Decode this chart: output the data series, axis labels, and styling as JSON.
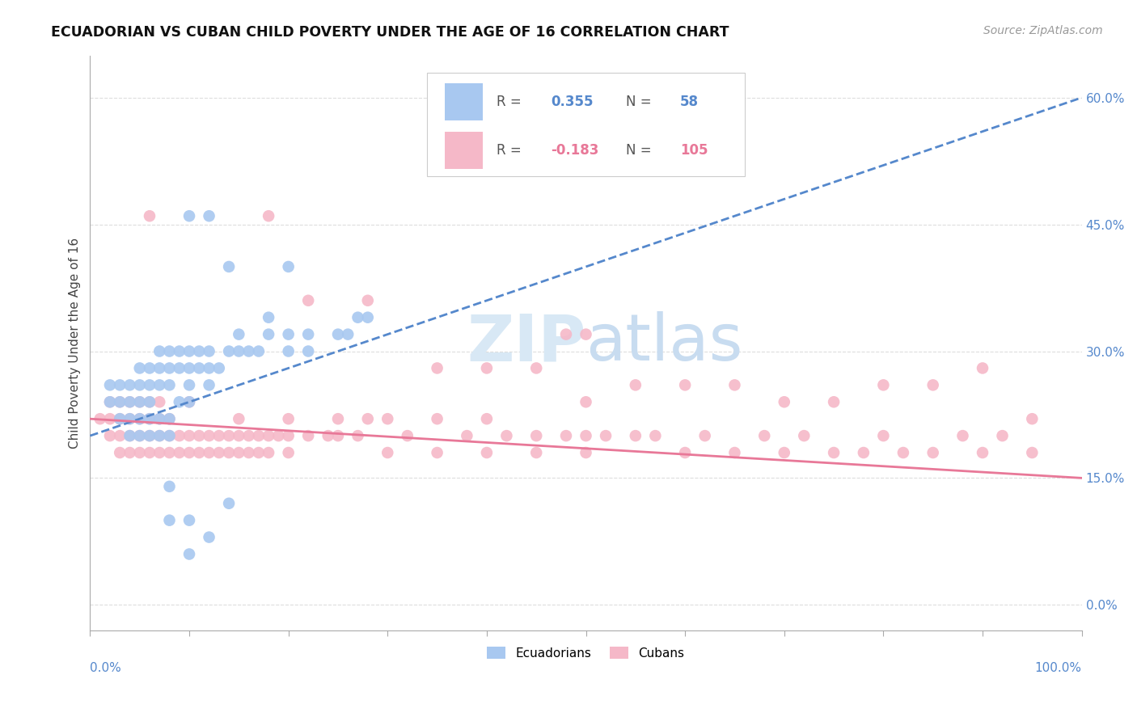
{
  "title": "ECUADORIAN VS CUBAN CHILD POVERTY UNDER THE AGE OF 16 CORRELATION CHART",
  "source": "Source: ZipAtlas.com",
  "ylabel": "Child Poverty Under the Age of 16",
  "xlim": [
    0,
    100
  ],
  "ylim": [
    -3,
    65
  ],
  "yticks": [
    0,
    15,
    30,
    45,
    60
  ],
  "ytick_labels": [
    "0.0%",
    "15.0%",
    "30.0%",
    "45.0%",
    "60.0%"
  ],
  "ec_color": "#A8C8F0",
  "cu_color": "#F5B8C8",
  "ec_line_color": "#5588CC",
  "cu_line_color": "#E87898",
  "background_color": "#FFFFFF",
  "ec_line": [
    0,
    20,
    100,
    60
  ],
  "cu_line": [
    0,
    22,
    100,
    15
  ],
  "ecuadorians": [
    [
      2,
      24
    ],
    [
      2,
      26
    ],
    [
      3,
      24
    ],
    [
      3,
      26
    ],
    [
      4,
      26
    ],
    [
      4,
      22
    ],
    [
      5,
      26
    ],
    [
      5,
      28
    ],
    [
      5,
      24
    ],
    [
      6,
      26
    ],
    [
      6,
      24
    ],
    [
      6,
      28
    ],
    [
      7,
      28
    ],
    [
      7,
      30
    ],
    [
      7,
      26
    ],
    [
      8,
      26
    ],
    [
      8,
      28
    ],
    [
      8,
      30
    ],
    [
      9,
      28
    ],
    [
      9,
      30
    ],
    [
      10,
      28
    ],
    [
      10,
      30
    ],
    [
      10,
      26
    ],
    [
      11,
      28
    ],
    [
      11,
      30
    ],
    [
      12,
      28
    ],
    [
      12,
      30
    ],
    [
      13,
      28
    ],
    [
      14,
      30
    ],
    [
      15,
      30
    ],
    [
      15,
      32
    ],
    [
      16,
      30
    ],
    [
      17,
      30
    ],
    [
      18,
      32
    ],
    [
      18,
      34
    ],
    [
      20,
      30
    ],
    [
      20,
      32
    ],
    [
      22,
      30
    ],
    [
      22,
      32
    ],
    [
      25,
      32
    ],
    [
      26,
      32
    ],
    [
      27,
      34
    ],
    [
      28,
      34
    ],
    [
      3,
      22
    ],
    [
      4,
      20
    ],
    [
      5,
      22
    ],
    [
      5,
      20
    ],
    [
      6,
      22
    ],
    [
      6,
      20
    ],
    [
      7,
      22
    ],
    [
      7,
      20
    ],
    [
      8,
      22
    ],
    [
      8,
      20
    ],
    [
      4,
      24
    ],
    [
      9,
      24
    ],
    [
      10,
      24
    ],
    [
      12,
      26
    ],
    [
      10,
      46
    ],
    [
      12,
      46
    ],
    [
      14,
      40
    ],
    [
      20,
      40
    ],
    [
      8,
      14
    ],
    [
      10,
      10
    ],
    [
      12,
      8
    ],
    [
      14,
      12
    ],
    [
      8,
      10
    ],
    [
      10,
      6
    ]
  ],
  "cubans": [
    [
      1,
      22
    ],
    [
      2,
      22
    ],
    [
      2,
      20
    ],
    [
      2,
      24
    ],
    [
      3,
      22
    ],
    [
      3,
      20
    ],
    [
      3,
      18
    ],
    [
      3,
      24
    ],
    [
      4,
      22
    ],
    [
      4,
      20
    ],
    [
      4,
      18
    ],
    [
      4,
      24
    ],
    [
      5,
      22
    ],
    [
      5,
      20
    ],
    [
      5,
      18
    ],
    [
      5,
      24
    ],
    [
      6,
      22
    ],
    [
      6,
      20
    ],
    [
      6,
      18
    ],
    [
      6,
      24
    ],
    [
      7,
      22
    ],
    [
      7,
      20
    ],
    [
      7,
      18
    ],
    [
      7,
      24
    ],
    [
      8,
      22
    ],
    [
      8,
      20
    ],
    [
      8,
      18
    ],
    [
      9,
      20
    ],
    [
      9,
      18
    ],
    [
      10,
      20
    ],
    [
      10,
      18
    ],
    [
      11,
      20
    ],
    [
      11,
      18
    ],
    [
      12,
      20
    ],
    [
      12,
      18
    ],
    [
      13,
      20
    ],
    [
      13,
      18
    ],
    [
      14,
      20
    ],
    [
      14,
      18
    ],
    [
      15,
      20
    ],
    [
      15,
      18
    ],
    [
      16,
      20
    ],
    [
      16,
      18
    ],
    [
      17,
      20
    ],
    [
      17,
      18
    ],
    [
      18,
      20
    ],
    [
      18,
      18
    ],
    [
      19,
      20
    ],
    [
      20,
      20
    ],
    [
      20,
      18
    ],
    [
      22,
      20
    ],
    [
      24,
      20
    ],
    [
      25,
      22
    ],
    [
      27,
      20
    ],
    [
      28,
      22
    ],
    [
      30,
      22
    ],
    [
      32,
      20
    ],
    [
      35,
      22
    ],
    [
      38,
      20
    ],
    [
      40,
      22
    ],
    [
      42,
      20
    ],
    [
      45,
      20
    ],
    [
      48,
      20
    ],
    [
      50,
      20
    ],
    [
      52,
      20
    ],
    [
      55,
      20
    ],
    [
      57,
      20
    ],
    [
      60,
      18
    ],
    [
      62,
      20
    ],
    [
      65,
      18
    ],
    [
      68,
      20
    ],
    [
      70,
      18
    ],
    [
      72,
      20
    ],
    [
      75,
      18
    ],
    [
      78,
      18
    ],
    [
      80,
      20
    ],
    [
      82,
      18
    ],
    [
      85,
      18
    ],
    [
      88,
      20
    ],
    [
      90,
      18
    ],
    [
      92,
      20
    ],
    [
      95,
      18
    ],
    [
      18,
      46
    ],
    [
      22,
      36
    ],
    [
      28,
      36
    ],
    [
      48,
      32
    ],
    [
      50,
      32
    ],
    [
      55,
      26
    ],
    [
      60,
      26
    ],
    [
      65,
      26
    ],
    [
      70,
      24
    ],
    [
      75,
      24
    ],
    [
      80,
      26
    ],
    [
      85,
      26
    ],
    [
      35,
      28
    ],
    [
      40,
      28
    ],
    [
      45,
      28
    ],
    [
      6,
      46
    ],
    [
      50,
      24
    ],
    [
      90,
      28
    ],
    [
      95,
      22
    ],
    [
      10,
      24
    ],
    [
      15,
      22
    ],
    [
      20,
      22
    ],
    [
      25,
      20
    ],
    [
      30,
      18
    ],
    [
      35,
      18
    ],
    [
      40,
      18
    ],
    [
      45,
      18
    ],
    [
      50,
      18
    ]
  ]
}
